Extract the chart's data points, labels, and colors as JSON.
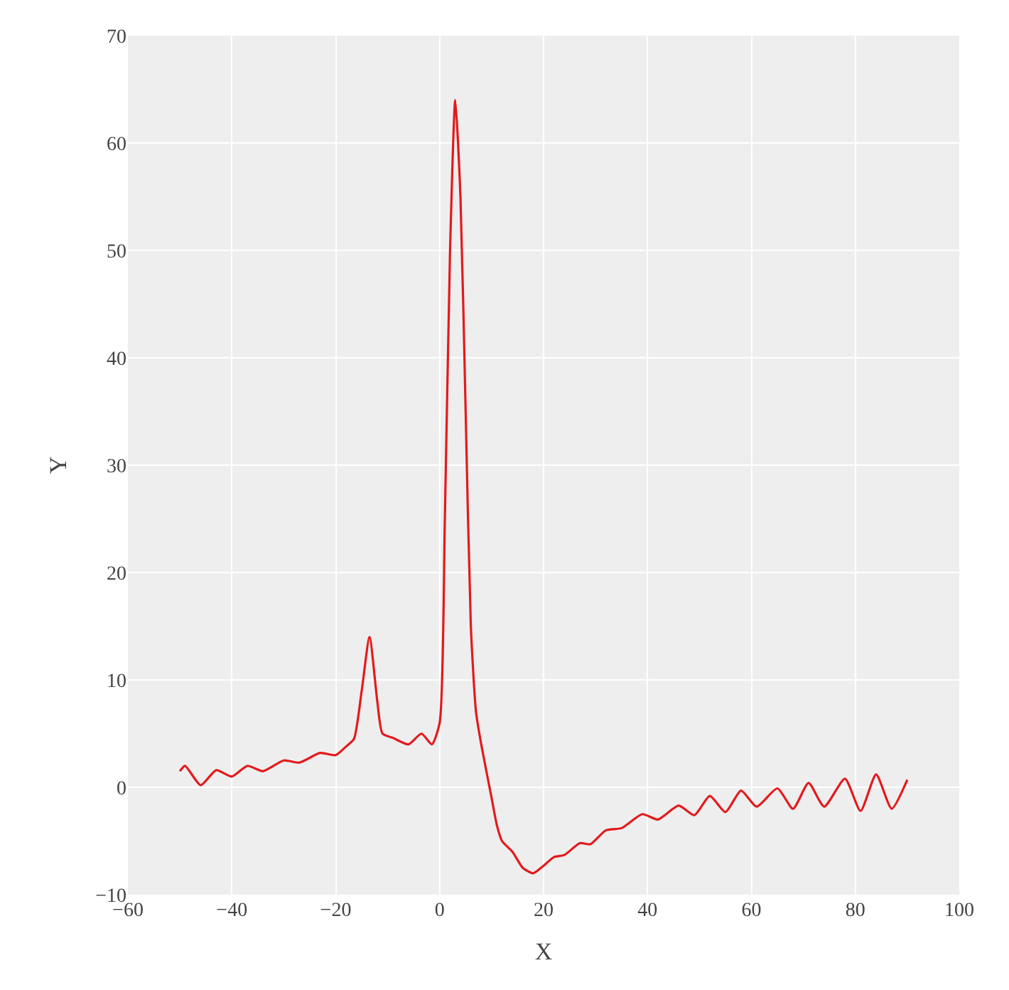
{
  "chart_data": {
    "type": "line",
    "xlabel": "X",
    "ylabel": "Y",
    "xlim": [
      -60,
      100
    ],
    "xticks": [
      -60,
      -40,
      -20,
      0,
      20,
      40,
      60,
      80,
      100
    ],
    "ylim": [
      -10,
      70
    ],
    "yticks": [
      -10,
      0,
      10,
      20,
      30,
      40,
      50,
      60,
      70
    ],
    "grid": true,
    "marker": "none",
    "line_style": "solid",
    "series": [
      {
        "color": "#e31a1c",
        "x": [
          -50,
          -49,
          -46,
          -43,
          -40,
          -37,
          -34,
          -30,
          -27,
          -23,
          -20,
          -18,
          -16.5,
          -15,
          -13.5,
          -12,
          -11,
          -9,
          -6,
          -3.5,
          -1.5,
          0,
          1,
          2,
          3,
          4,
          5,
          6,
          7,
          8,
          10,
          11,
          12,
          14,
          16,
          18,
          20,
          22,
          24,
          27,
          29,
          32,
          35,
          39,
          42,
          46,
          49,
          52,
          55,
          58,
          61,
          65,
          68,
          71,
          74,
          78,
          81,
          84,
          87,
          90
        ],
        "values": [
          1.5,
          2,
          0.2,
          1.6,
          1,
          2,
          1.5,
          2.5,
          2.3,
          3.2,
          3,
          3.8,
          4.5,
          9,
          14,
          8,
          5,
          4.6,
          4,
          5,
          4,
          6,
          25,
          50,
          64,
          55,
          35,
          15,
          7,
          4,
          -1,
          -3.5,
          -5,
          -6,
          -7.5,
          -8,
          -7.3,
          -6.5,
          -6.3,
          -5.2,
          -5.3,
          -4,
          -3.8,
          -2.5,
          -3,
          -1.7,
          -2.6,
          -0.8,
          -2.3,
          -0.3,
          -1.8,
          -0.1,
          -2,
          0.4,
          -1.8,
          0.8,
          -2.2,
          1.2,
          -2,
          0.7
        ]
      }
    ]
  }
}
